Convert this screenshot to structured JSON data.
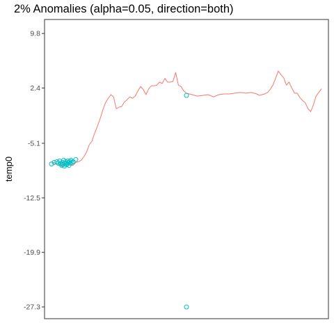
{
  "chart_data": {
    "type": "line",
    "title": "2% Anomalies (alpha=0.05, direction=both)",
    "xlabel": "",
    "ylabel": "temp0",
    "y_ticks": [
      9.8,
      2.4,
      -5.1,
      -12.5,
      -19.9,
      -27.3
    ],
    "y_tick_labels": [
      "9.8",
      "2.4",
      "-5.1",
      "-12.5",
      "-19.9",
      "-27.3"
    ],
    "ylim": [
      -28.9,
      11.7
    ],
    "xlim": [
      0,
      1000
    ],
    "x_ticks": [],
    "grid": false,
    "legend": "none",
    "colors": {
      "series": "#F8766D",
      "anomaly": "#00BFC4",
      "panel_border": "#333333",
      "tick_label": "#4d4d4d"
    },
    "series": [
      {
        "values_x": [
          0,
          20,
          40,
          60,
          80,
          90,
          100,
          110,
          120,
          130,
          140,
          150,
          160,
          170,
          180,
          190,
          200,
          210,
          220,
          230,
          240,
          250,
          260,
          270,
          280,
          290,
          300,
          310,
          320,
          330,
          340,
          350,
          360,
          370,
          380,
          390,
          400,
          410,
          420,
          430,
          440,
          450,
          460,
          470,
          480,
          490,
          500,
          520,
          540,
          560,
          580,
          600,
          620,
          640,
          660,
          680,
          700,
          720,
          740,
          760,
          770,
          780,
          790,
          800,
          810,
          820,
          830,
          840,
          850,
          860,
          870,
          880,
          890,
          900,
          910,
          920,
          930,
          940,
          950,
          960,
          970,
          980,
          990,
          1000
        ],
        "values_y": [
          -7.6,
          -7.9,
          -8.1,
          -8.0,
          -8.1,
          -7.7,
          -7.6,
          -7.4,
          -6.9,
          -6.3,
          -5.3,
          -4.8,
          -3.7,
          -2.8,
          -1.8,
          -0.6,
          0.4,
          1.0,
          1.5,
          1.2,
          -0.4,
          -0.2,
          -0.1,
          0.5,
          0.8,
          1.2,
          1.0,
          1.3,
          2.0,
          2.6,
          2.2,
          1.5,
          2.3,
          2.7,
          2.7,
          2.8,
          3.2,
          3.0,
          3.7,
          3.2,
          3.2,
          3.3,
          4.5,
          2.8,
          2.6,
          2.0,
          1.7,
          1.5,
          1.3,
          1.4,
          1.5,
          1.2,
          1.5,
          1.6,
          1.6,
          1.7,
          1.8,
          1.7,
          1.8,
          1.6,
          1.4,
          1.5,
          1.6,
          1.8,
          2.2,
          2.8,
          3.7,
          4.7,
          4.2,
          3.8,
          2.8,
          3.2,
          2.4,
          1.7,
          1.7,
          1.1,
          0.7,
          0.4,
          -0.4,
          -0.8,
          0.1,
          1.3,
          1.8,
          2.3
        ]
      }
    ],
    "anomalies_x": [
      0,
      10,
      20,
      25,
      30,
      35,
      38,
      40,
      42,
      45,
      48,
      50,
      52,
      55,
      58,
      60,
      62,
      65,
      68,
      70,
      72,
      75,
      80,
      90,
      500,
      500
    ],
    "anomalies_y": [
      -7.9,
      -7.7,
      -7.6,
      -7.8,
      -7.5,
      -7.9,
      -8.1,
      -7.7,
      -8.0,
      -7.4,
      -8.2,
      -7.8,
      -7.6,
      -8.0,
      -7.9,
      -7.5,
      -7.7,
      -8.1,
      -7.6,
      -7.8,
      -7.4,
      -7.7,
      -7.6,
      -7.3,
      1.4,
      -27.3
    ]
  }
}
